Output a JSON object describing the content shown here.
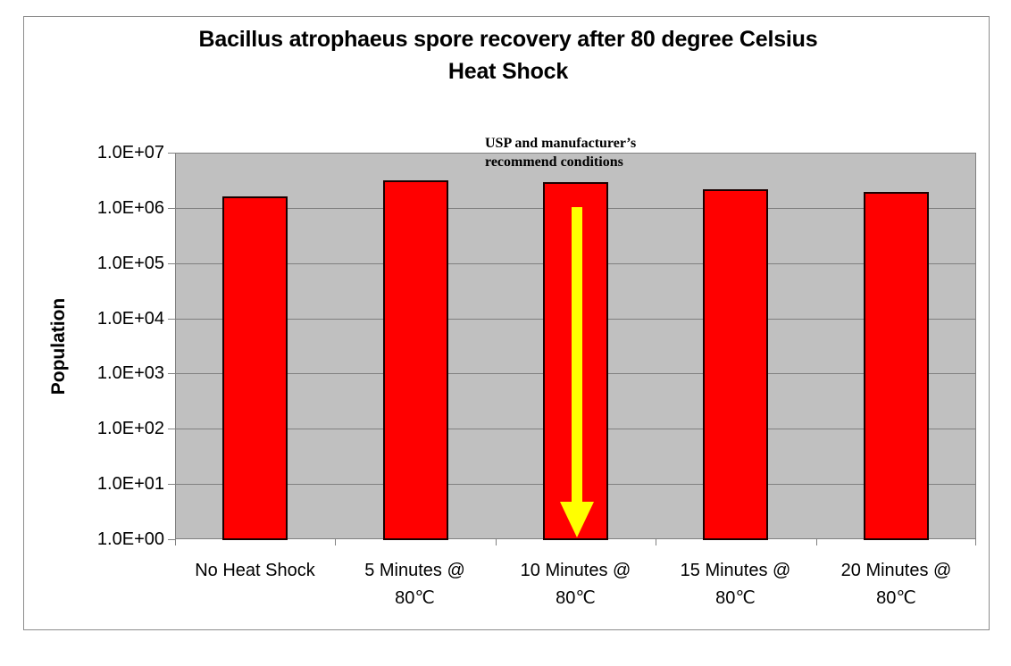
{
  "chart_data": {
    "type": "bar",
    "title": "Bacillus atrophaeus spore recovery after 80 degree Celsius Heat Shock",
    "title_lines": [
      "Bacillus atrophaeus spore recovery after 80 degree Celsius",
      "Heat Shock"
    ],
    "xlabel": "",
    "ylabel": "Population",
    "yscale": "log",
    "ylim": [
      1,
      10000000
    ],
    "yticks": [
      "1.0E+00",
      "1.0E+01",
      "1.0E+02",
      "1.0E+03",
      "1.0E+04",
      "1.0E+05",
      "1.0E+06",
      "1.0E+07"
    ],
    "categories": [
      "No Heat Shock",
      "5 Minutes @ 80℃",
      "10 Minutes @ 80℃",
      "15 Minutes @ 80℃",
      "20 Minutes @ 80℃"
    ],
    "category_lines": [
      [
        "No Heat Shock",
        ""
      ],
      [
        "5 Minutes @",
        "80℃"
      ],
      [
        "10 Minutes @",
        "80℃"
      ],
      [
        "15 Minutes @",
        "80℃"
      ],
      [
        "20 Minutes @",
        "80℃"
      ]
    ],
    "values": [
      1600000,
      3100000,
      2900000,
      2200000,
      1950000
    ],
    "series": [
      {
        "name": "Population",
        "values": [
          1600000,
          3100000,
          2900000,
          2200000,
          1950000
        ],
        "color": "#ff0000"
      }
    ],
    "grid": true,
    "legend": null,
    "annotations": [
      {
        "text_lines": [
          "USP and manufacturer’s",
          "recommend conditions"
        ],
        "target_category": "10 Minutes @ 80℃"
      },
      {
        "type": "arrow",
        "direction": "down",
        "color": "#ffff00",
        "target_category": "10 Minutes @ 80℃"
      }
    ],
    "colors": {
      "bar": "#ff0000",
      "plot_background": "#c0c0c0",
      "gridline": "#808080",
      "arrow": "#ffff00"
    }
  }
}
